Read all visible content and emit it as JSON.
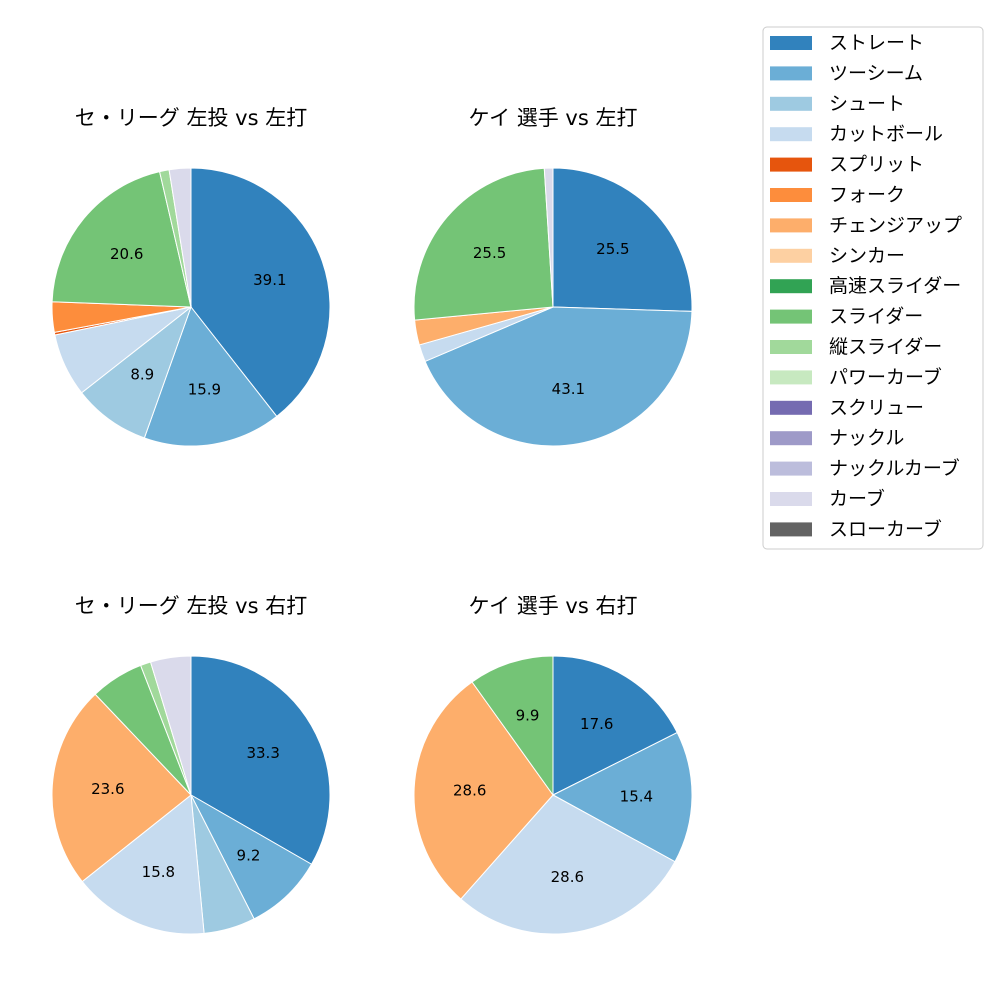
{
  "legend": {
    "items": [
      {
        "label": "ストレート",
        "color": "#3182bd"
      },
      {
        "label": "ツーシーム",
        "color": "#6baed6"
      },
      {
        "label": "シュート",
        "color": "#9ecae1"
      },
      {
        "label": "カットボール",
        "color": "#c6dbef"
      },
      {
        "label": "スプリット",
        "color": "#e6550d"
      },
      {
        "label": "フォーク",
        "color": "#fd8d3c"
      },
      {
        "label": "チェンジアップ",
        "color": "#fdae6b"
      },
      {
        "label": "シンカー",
        "color": "#fdd0a2"
      },
      {
        "label": "高速スライダー",
        "color": "#31a354"
      },
      {
        "label": "スライダー",
        "color": "#74c476"
      },
      {
        "label": "縦スライダー",
        "color": "#a1d99b"
      },
      {
        "label": "パワーカーブ",
        "color": "#c7e9c0"
      },
      {
        "label": "スクリュー",
        "color": "#756bb1"
      },
      {
        "label": "ナックル",
        "color": "#9e9ac8"
      },
      {
        "label": "ナックルカーブ",
        "color": "#bcbddc"
      },
      {
        "label": "カーブ",
        "color": "#dadaeb"
      },
      {
        "label": "スローカーブ",
        "color": "#636363"
      }
    ]
  },
  "chart_data": [
    {
      "type": "pie",
      "title": "セ・リーグ 左投 vs 左打",
      "slices": [
        {
          "category": "ストレート",
          "value": 39.1,
          "label": "39.1"
        },
        {
          "category": "ツーシーム",
          "value": 15.9,
          "label": "15.9"
        },
        {
          "category": "シュート",
          "value": 8.9,
          "label": "8.9"
        },
        {
          "category": "カットボール",
          "value": 7.3,
          "label": ""
        },
        {
          "category": "スプリット",
          "value": 0.3,
          "label": ""
        },
        {
          "category": "フォーク",
          "value": 3.5,
          "label": ""
        },
        {
          "category": "スライダー",
          "value": 20.6,
          "label": "20.6"
        },
        {
          "category": "縦スライダー",
          "value": 1.1,
          "label": ""
        },
        {
          "category": "カーブ",
          "value": 2.5,
          "label": ""
        }
      ]
    },
    {
      "type": "pie",
      "title": "ケイ 選手 vs 左打",
      "slices": [
        {
          "category": "ストレート",
          "value": 25.5,
          "label": "25.5"
        },
        {
          "category": "ツーシーム",
          "value": 43.1,
          "label": "43.1"
        },
        {
          "category": "カットボール",
          "value": 2.0,
          "label": ""
        },
        {
          "category": "チェンジアップ",
          "value": 2.9,
          "label": ""
        },
        {
          "category": "スライダー",
          "value": 25.5,
          "label": "25.5"
        },
        {
          "category": "カーブ",
          "value": 1.0,
          "label": ""
        }
      ]
    },
    {
      "type": "pie",
      "title": "セ・リーグ 左投 vs 右打",
      "slices": [
        {
          "category": "ストレート",
          "value": 33.3,
          "label": "33.3"
        },
        {
          "category": "ツーシーム",
          "value": 9.2,
          "label": "9.2"
        },
        {
          "category": "シュート",
          "value": 6.0,
          "label": ""
        },
        {
          "category": "カットボール",
          "value": 15.8,
          "label": "15.8"
        },
        {
          "category": "チェンジアップ",
          "value": 23.6,
          "label": "23.6"
        },
        {
          "category": "スライダー",
          "value": 6.2,
          "label": ""
        },
        {
          "category": "縦スライダー",
          "value": 1.2,
          "label": ""
        },
        {
          "category": "カーブ",
          "value": 4.7,
          "label": ""
        }
      ]
    },
    {
      "type": "pie",
      "title": "ケイ 選手 vs 右打",
      "slices": [
        {
          "category": "ストレート",
          "value": 17.6,
          "label": "17.6"
        },
        {
          "category": "ツーシーム",
          "value": 15.4,
          "label": "15.4"
        },
        {
          "category": "カットボール",
          "value": 28.6,
          "label": "28.6"
        },
        {
          "category": "チェンジアップ",
          "value": 28.6,
          "label": "28.6"
        },
        {
          "category": "スライダー",
          "value": 9.9,
          "label": "9.9"
        }
      ]
    }
  ]
}
